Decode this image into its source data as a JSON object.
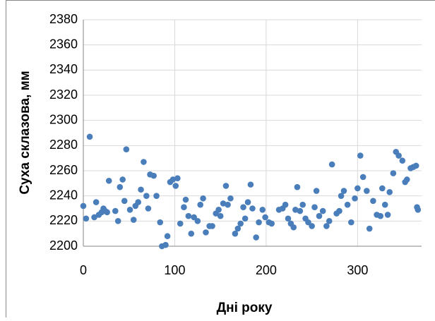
{
  "chart_data": {
    "type": "scatter",
    "y_label": "Суха склазова, мм",
    "x_label": "Дні року",
    "color": "#4a7ebb",
    "grid": true,
    "xlim": [
      0,
      370
    ],
    "xticks": [
      0,
      100,
      200,
      300
    ],
    "ylim": [
      2200,
      2380
    ],
    "yticks": [
      2200,
      2220,
      2240,
      2260,
      2280,
      2300,
      2320,
      2340,
      2360,
      2380
    ],
    "x": [
      0,
      3,
      7,
      12,
      14,
      17,
      20,
      22,
      24,
      26,
      28,
      35,
      38,
      40,
      43,
      45,
      47,
      51,
      55,
      57,
      60,
      63,
      66,
      69,
      71,
      73,
      77,
      80,
      84,
      86,
      90,
      92,
      95,
      98,
      101,
      103,
      106,
      110,
      112,
      115,
      118,
      121,
      125,
      128,
      131,
      134,
      138,
      141,
      145,
      148,
      150,
      153,
      156,
      158,
      161,
      166,
      169,
      172,
      175,
      177,
      180,
      183,
      185,
      189,
      192,
      196,
      199,
      203,
      206,
      214,
      218,
      221,
      224,
      227,
      230,
      232,
      234,
      237,
      240,
      243,
      246,
      250,
      253,
      255,
      258,
      262,
      266,
      269,
      272,
      277,
      280,
      282,
      285,
      289,
      293,
      297,
      300,
      303,
      306,
      310,
      313,
      317,
      321,
      325,
      327,
      330,
      333,
      335,
      339,
      342,
      345,
      349,
      352,
      354,
      358,
      361,
      364,
      365,
      366
    ],
    "values": [
      2232,
      2222,
      2287,
      2223,
      2235,
      2225,
      2227,
      2230,
      2228,
      2227,
      2252,
      2228,
      2220,
      2247,
      2253,
      2236,
      2277,
      2229,
      2221,
      2232,
      2235,
      2245,
      2267,
      2240,
      2230,
      2257,
      2256,
      2240,
      2219,
      2200,
      2201,
      2208,
      2251,
      2253,
      2248,
      2254,
      2218,
      2231,
      2237,
      2224,
      2210,
      2223,
      2220,
      2233,
      2238,
      2211,
      2216,
      2216,
      2226,
      2229,
      2224,
      2234,
      2248,
      2233,
      2238,
      2210,
      2214,
      2218,
      2231,
      2222,
      2235,
      2249,
      2230,
      2207,
      2219,
      2229,
      2223,
      2219,
      2218,
      2229,
      2230,
      2233,
      2222,
      2218,
      2215,
      2229,
      2247,
      2228,
      2233,
      2222,
      2219,
      2216,
      2231,
      2244,
      2224,
      2228,
      2216,
      2220,
      2265,
      2226,
      2228,
      2240,
      2244,
      2233,
      2219,
      2238,
      2246,
      2272,
      2255,
      2244,
      2214,
      2236,
      2225,
      2224,
      2246,
      2233,
      2225,
      2243,
      2258,
      2275,
      2272,
      2268,
      2251,
      2253,
      2262,
      2263,
      2264,
      2231,
      2229
    ]
  }
}
